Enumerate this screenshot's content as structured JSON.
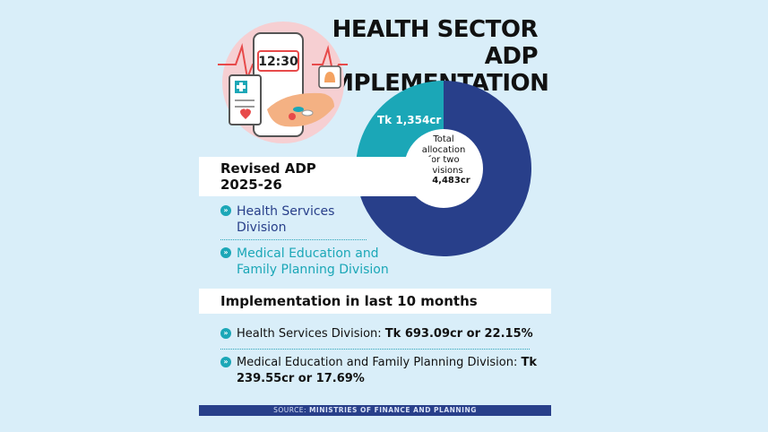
{
  "title_line1": "HEALTH SECTOR ADP",
  "title_line2": "IMPLEMENTATION",
  "illustration": {
    "clock_text": "12:30",
    "icons": [
      "phone-clock-icon",
      "medical-report-icon",
      "bell-icon",
      "hand-pills-icon",
      "heart-icon"
    ]
  },
  "revised": {
    "heading_line1": "Revised ADP",
    "heading_line2": "2025-26",
    "legend": [
      {
        "line1": "Health Services",
        "line2": "Division",
        "color": "#283f8a"
      },
      {
        "line1": "Medical Education and",
        "line2": "Family Planning Division",
        "color": "#1ba7b7"
      }
    ]
  },
  "chart_data": {
    "type": "pie",
    "slices": [
      {
        "value": 3129,
        "color": "#283f8a"
      },
      {
        "value": 1354,
        "label": "Tk 1,354cr",
        "color": "#1ba7b7"
      }
    ],
    "center_lines": [
      "Total",
      "allocation",
      "for two",
      "divisions"
    ],
    "center_value": "Tk 4,483cr"
  },
  "implementation": {
    "heading": "Implementation in last 10 months",
    "items": [
      {
        "label": "Health Services Division: ",
        "value": "Tk 693.09cr or 22.15%"
      },
      {
        "label": "Medical Education and Family Planning Division: ",
        "value_line1": "Tk",
        "value_line2": "239.55cr or 17.69%"
      }
    ]
  },
  "source": {
    "prefix": "SOURCE: ",
    "text": "MINISTRIES OF FINANCE AND PLANNING"
  },
  "colors": {
    "background": "#d9eef9",
    "navy": "#283f8a",
    "teal": "#1ba7b7"
  }
}
